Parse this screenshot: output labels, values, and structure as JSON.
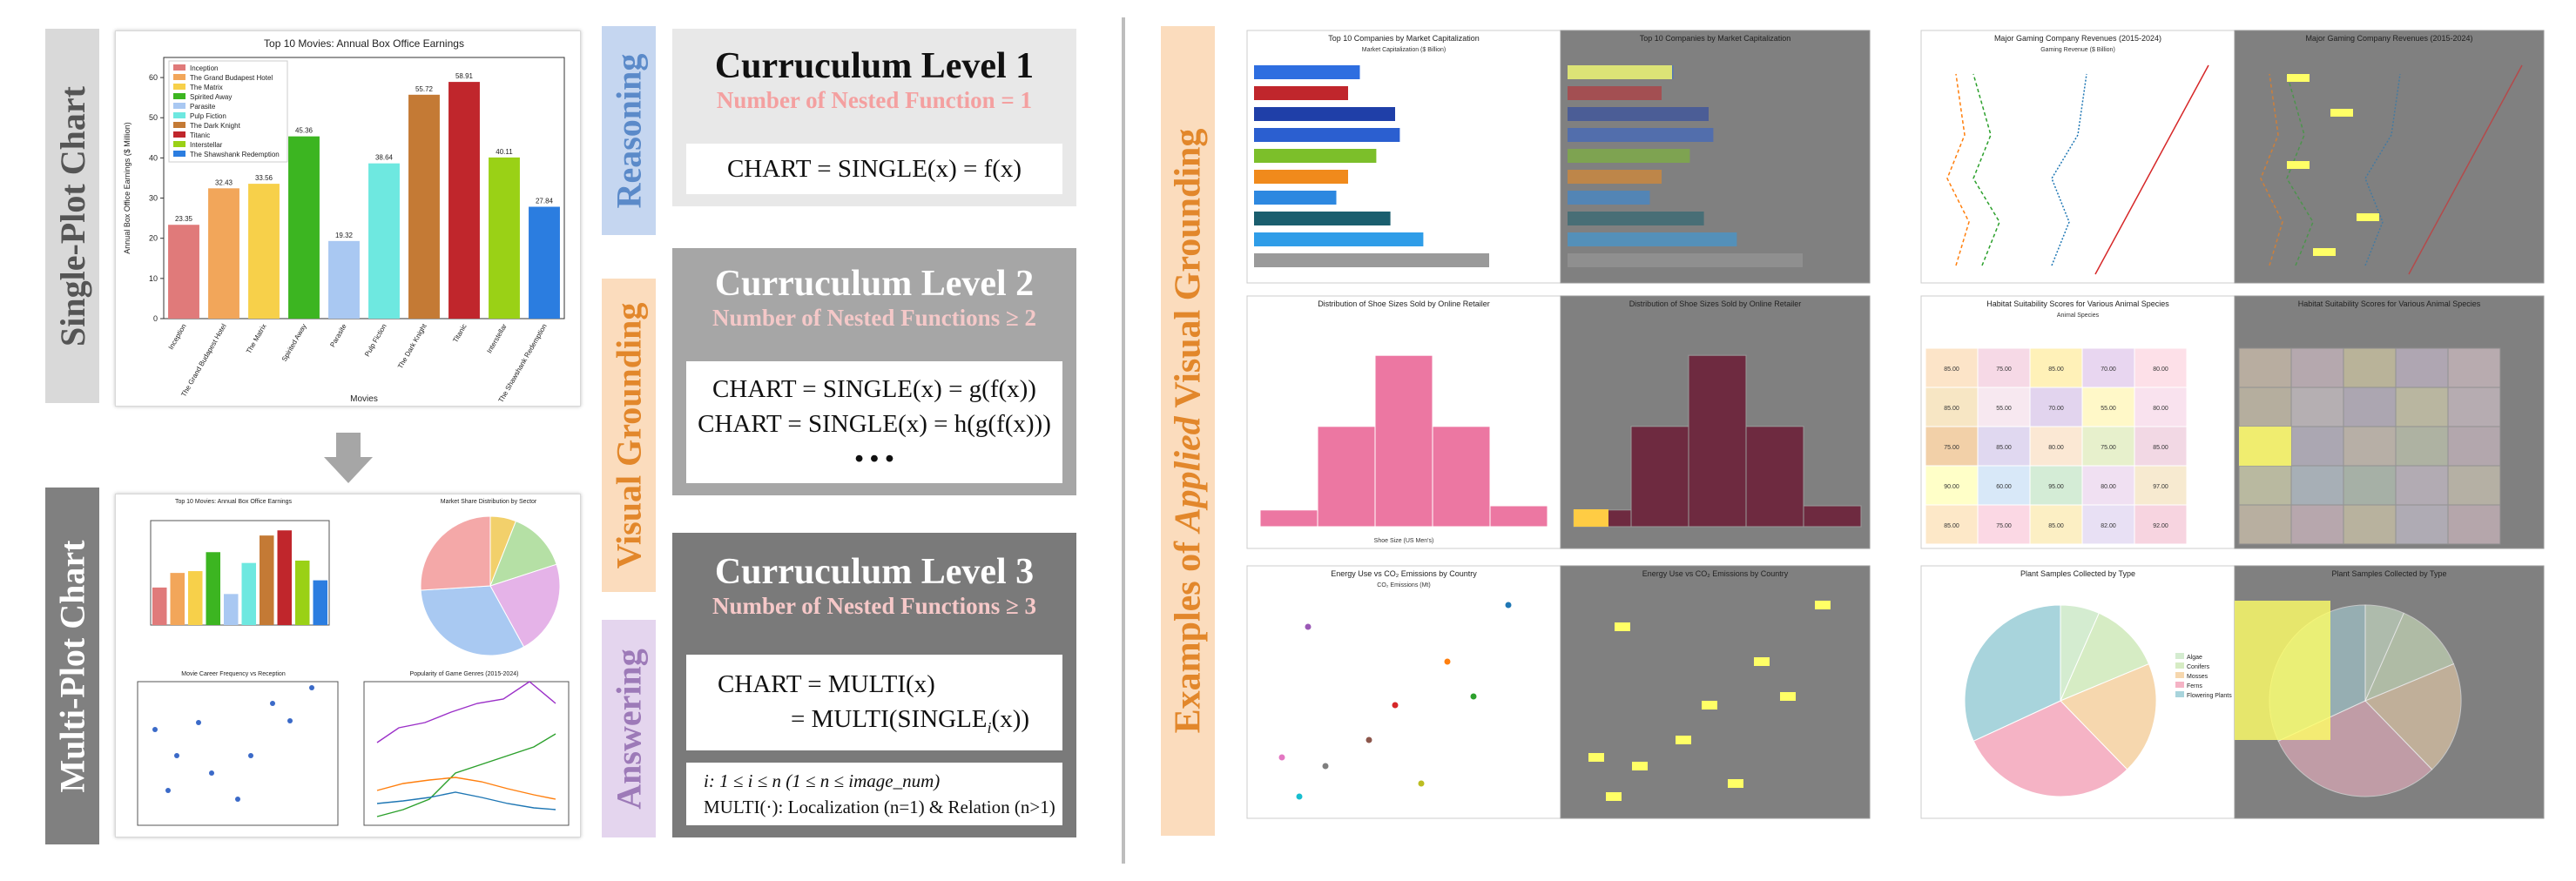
{
  "colors": {
    "band_gray": "#d9d9d9",
    "band_blue": "#c5d6f0",
    "band_orange": "#fbdcbd",
    "band_purple": "#e4d5ee",
    "level1_bg": "#e8e8e8",
    "level2_bg": "#a6a6a6",
    "level3_bg": "#7a7a7a",
    "pink_text": "#f4a0a0",
    "orange_text": "#e2872b",
    "blue_text": "#5b8ac9",
    "purple_text": "#9d7ab8",
    "gray_text": "#555555",
    "dark_panel": "#808080",
    "highlight": "#ffff66"
  },
  "left": {
    "single_plot_label": "Single-Plot Chart",
    "multi_plot_label": "Multi-Plot Chart",
    "down_arrow_icon": "down-arrow"
  },
  "single_chart": {
    "chart_data": {
      "type": "bar",
      "title": "Top 10 Movies: Annual Box Office Earnings",
      "xlabel": "Movies",
      "ylabel": "Annual Box Office Earnings ($ Million)",
      "ylim": [
        0,
        65
      ],
      "yticks": [
        0,
        10,
        20,
        30,
        40,
        50,
        60
      ],
      "categories": [
        "Inception",
        "The Grand Budapest Hotel",
        "The Matrix",
        "Spirited Away",
        "Parasite",
        "Pulp Fiction",
        "The Dark Knight",
        "Titanic",
        "Interstellar",
        "The Shawshank Redemption"
      ],
      "values": [
        23.35,
        32.43,
        33.56,
        45.36,
        19.32,
        38.64,
        55.72,
        58.91,
        40.11,
        27.84
      ],
      "value_labels": [
        "23.35",
        "32.43",
        "33.56",
        "45.36",
        "19.32",
        "38.64",
        "55.72",
        "58.91",
        "40.11",
        "27.84"
      ],
      "colors": [
        "#e07a7a",
        "#f2a65a",
        "#f7d04a",
        "#3cb521",
        "#a9c8f2",
        "#6ee8e0",
        "#c47a35",
        "#c0262c",
        "#9ad116",
        "#2b7de0"
      ],
      "legend_position": "top-left"
    }
  },
  "multi_chart": {
    "bar_title": "Top 10 Movies: Annual Box Office Earnings",
    "pie_title": "Market Share Distribution by Sector",
    "scatter_title": "Movie Career Frequency vs Reception",
    "line_title": "Popularity of Game Genres (2015-2024)",
    "mini_bar": {
      "values": [
        23.35,
        32.43,
        33.56,
        45.36,
        19.32,
        38.64,
        55.72,
        58.91,
        40.11,
        27.84
      ]
    },
    "mini_pie": {
      "values": [
        6,
        14,
        22,
        32,
        26
      ],
      "colors": [
        "#f2d06b",
        "#b5e0a5",
        "#e5b3e8",
        "#a9c9f2",
        "#f4a8a8"
      ]
    }
  },
  "levels": [
    {
      "title": "Curruculum Level 1",
      "subtitle": "Number of Nested Function = 1",
      "lines": [
        "CHART = SINGLE(x) = f(x)"
      ]
    },
    {
      "title": "Curruculum Level 2",
      "subtitle": "Number of Nested Functions ≥ 2",
      "lines": [
        "CHART = SINGLE(x) = g(f(x))",
        "CHART = SINGLE(x) = h(g(f(x)))",
        "• • •"
      ]
    },
    {
      "title": "Curruculum Level 3",
      "subtitle": "Number of Nested Functions ≥ 3",
      "lines": [
        "CHART = MULTI(x)",
        "= MULTI(SINGLE",
        "i",
        "(x))"
      ],
      "note1": "i: 1 ≤ i ≤  n (1 ≤ n ≤ image_num)",
      "note2": "MULTI(·): Localization (n=1) & Relation (n>1)"
    }
  ],
  "labels": {
    "reasoning": "Reasoning",
    "visual_grounding": "Visual Grounding",
    "answering": "Answering"
  },
  "examples": {
    "label_pre": "Examples of ",
    "label_em": "Applied",
    "label_post": " Visual Grounding",
    "top10_title": "Top 10 Companies by Market Capitalization",
    "top10_sub": "Market Capitalization ($ Billion)",
    "gaming_title": "Major Gaming Company Revenues (2015-2024)",
    "gaming_sub": "Gaming Revenue ($ Billion)",
    "shoe_title": "Distribution of Shoe Sizes Sold by Online Retailer",
    "shoe_x": "Shoe Size (US Men's)",
    "habitat_title": "Habitat Suitability Scores for Various Animal Species",
    "habitat_sub": "Animal Species",
    "energy_title": "Energy Use vs CO₂ Emissions by Country",
    "energy_sub": "CO₂ Emissions (Mt)",
    "plant_title": "Plant Samples Collected by Type",
    "top10_bars": [
      0.45,
      0.4,
      0.6,
      0.62,
      0.52,
      0.4,
      0.35,
      0.58,
      0.72,
      1.0
    ],
    "top10_colors": [
      "#2e6ee0",
      "#c0262c",
      "#1f3fa8",
      "#2b5fd0",
      "#7cbf2a",
      "#f08a1c",
      "#2d88e0",
      "#1a5e6e",
      "#2f9de8",
      "#9a9a9a"
    ],
    "shoe_bars": [
      0.08,
      0.48,
      0.82,
      0.48,
      0.1
    ],
    "habitat_values": [
      [
        "85.00",
        "75.00",
        "85.00",
        "70.00",
        "80.00"
      ],
      [
        "85.00",
        "55.00",
        "70.00",
        "55.00",
        "80.00"
      ],
      [
        "75.00",
        "85.00",
        "80.00",
        "75.00",
        "85.00"
      ],
      [
        "90.00",
        "60.00",
        "95.00",
        "80.00",
        "97.00"
      ],
      [
        "85.00",
        "75.00",
        "85.00",
        "82.00",
        "92.00"
      ]
    ],
    "habitat_colors": [
      [
        "#fce4c8",
        "#f6d9e6",
        "#fff1b8",
        "#e8d6f0",
        "#fde0e8"
      ],
      [
        "#f7e6c4",
        "#f7e8f0",
        "#e2d4ee",
        "#fff8c8",
        "#f9e2ee"
      ],
      [
        "#f2d0a8",
        "#e0d8f0",
        "#fbe8d4",
        "#e7f0cc",
        "#f2d8e4"
      ],
      [
        "#ffffc8",
        "#d8e8f8",
        "#d4ecd6",
        "#f0e0f2",
        "#f7ead0"
      ],
      [
        "#fde8c8",
        "#fbd8e4",
        "#fcefc4",
        "#e8e0f4",
        "#f7d4e0"
      ]
    ],
    "plant_values": [
      6.72,
      12.34,
      19.38,
      30.94,
      32.5
    ],
    "plant_colors": [
      "#d4ecd0",
      "#d6ecc4",
      "#f6d7ae",
      "#f5b3c5",
      "#a8d4dc"
    ],
    "plant_labels": [
      "Algae",
      "Conifers",
      "Mosses",
      "Ferns",
      "Flowering Plants"
    ]
  }
}
